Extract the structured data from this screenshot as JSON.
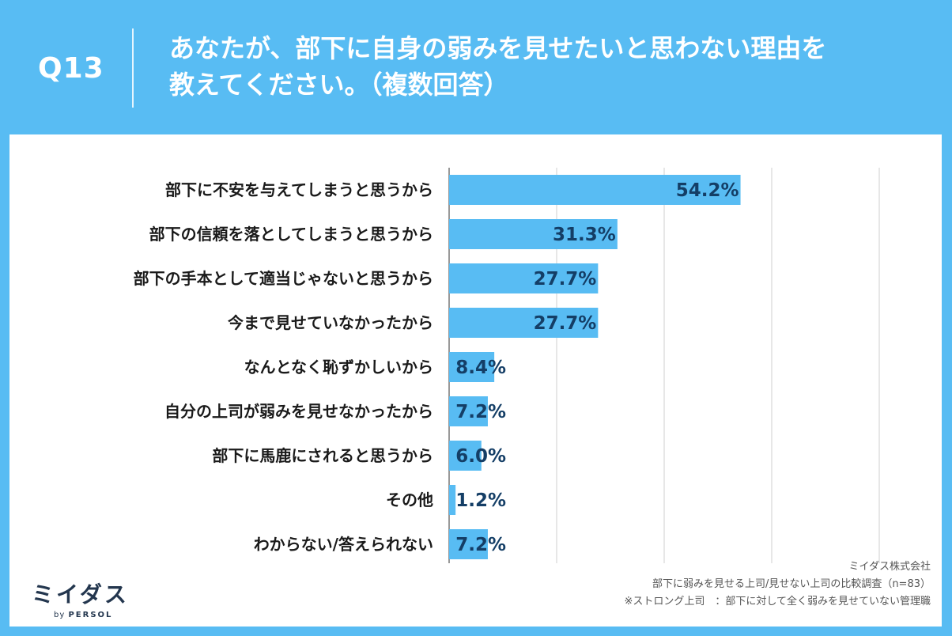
{
  "header": {
    "question_number": "Q13",
    "title_line1": "あなたが、部下に自身の弱みを見せたいと思わない理由を",
    "title_line2": "教えてください。（複数回答）"
  },
  "colors": {
    "background": "#58bcf3",
    "bar": "#58bcf3",
    "value_text": "#143e66"
  },
  "chart_data": {
    "type": "bar",
    "orientation": "horizontal",
    "categories": [
      "部下に不安を与えてしまうと思うから",
      "部下の信頼を落としてしまうと思うから",
      "部下の手本として適当じゃないと思うから",
      "今まで見せていなかったから",
      "なんとなく恥ずかしいから",
      "自分の上司が弱みを見せなかったから",
      "部下に馬鹿にされると思うから",
      "その他",
      "わからない/答えられない"
    ],
    "values": [
      54.2,
      31.3,
      27.7,
      27.7,
      8.4,
      7.2,
      6.0,
      1.2,
      7.2
    ],
    "value_labels": [
      "54.2%",
      "31.3%",
      "27.7%",
      "27.7%",
      "8.4%",
      "7.2%",
      "6.0%",
      "1.2%",
      "7.2%"
    ],
    "xlim": [
      0,
      80
    ],
    "grid": true,
    "unit": "%"
  },
  "footer": {
    "logo_main": "ミイダス",
    "logo_by": "by",
    "logo_company": "PERSOL",
    "source_company": "ミイダス株式会社",
    "source_survey": "部下に弱みを見せる上司/見せない上司の比較調査（n=83）",
    "source_note": "※ストロング上司　：部下に対して全く弱みを見せていない管理職"
  }
}
